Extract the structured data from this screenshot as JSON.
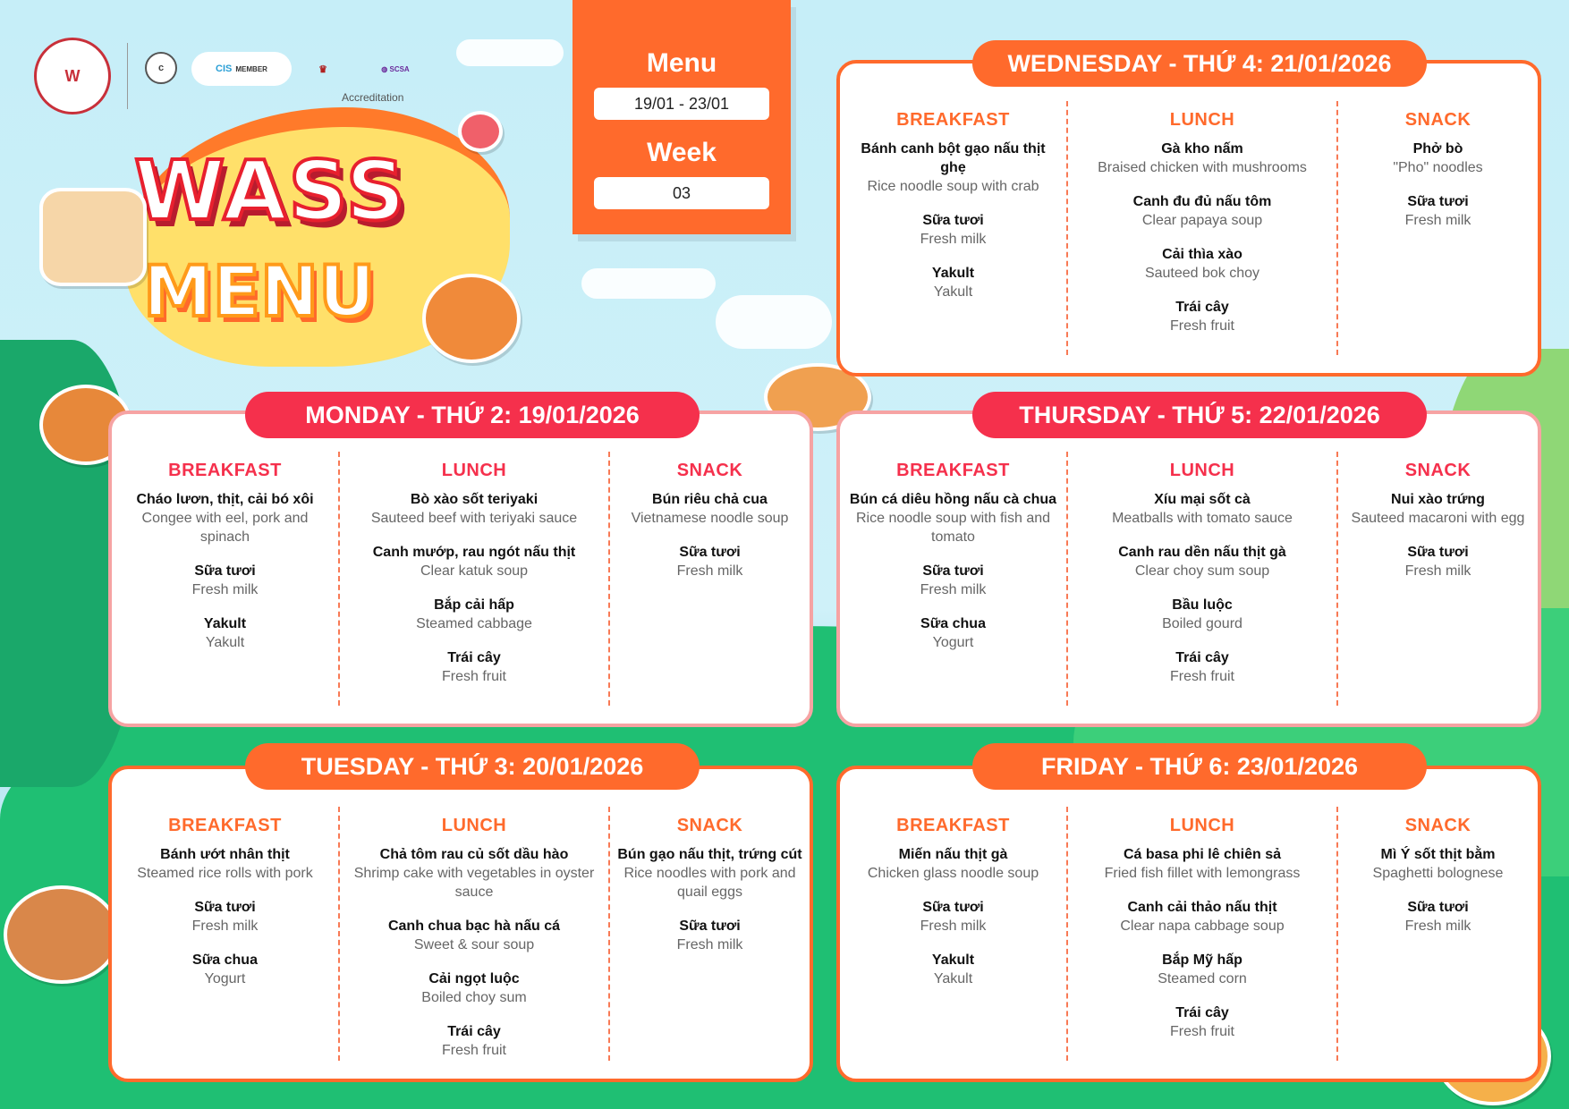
{
  "colors": {
    "orange": "#ff6a2c",
    "red": "#f5304c",
    "pink_border": "#f6a3a3"
  },
  "brand": {
    "logo_text": "WASS",
    "accreditation": "Accreditation",
    "logos": [
      "cognia",
      "CIS MEMBER",
      "WA",
      "School Curriculum and Standards Authority International"
    ]
  },
  "title": {
    "line1": "WASS",
    "line2": "MENU"
  },
  "menu_panel": {
    "menu_label": "Menu",
    "date_range": "19/01 - 23/01",
    "week_label": "Week",
    "week_number": "03"
  },
  "days": [
    {
      "header": "MONDAY - THỨ 2: 19/01/2026",
      "style": "red",
      "meals": [
        {
          "label": "BREAKFAST",
          "items": [
            {
              "vi": "Cháo lươn, thịt, cải bó xôi",
              "en": "Congee with eel, pork and spinach"
            },
            {
              "vi": "Sữa tươi",
              "en": "Fresh milk"
            },
            {
              "vi": "Yakult",
              "en": "Yakult"
            }
          ]
        },
        {
          "label": "LUNCH",
          "items": [
            {
              "vi": "Bò xào sốt teriyaki",
              "en": "Sauteed beef with teriyaki sauce"
            },
            {
              "vi": "Canh mướp, rau ngót nấu thịt",
              "en": "Clear katuk soup"
            },
            {
              "vi": "Bắp cải hấp",
              "en": "Steamed cabbage"
            },
            {
              "vi": "Trái cây",
              "en": "Fresh fruit"
            }
          ]
        },
        {
          "label": "SNACK",
          "items": [
            {
              "vi": "Bún riêu chả cua",
              "en": "Vietnamese noodle soup"
            },
            {
              "vi": "Sữa tươi",
              "en": "Fresh milk"
            }
          ]
        }
      ]
    },
    {
      "header": "TUESDAY - THỨ 3: 20/01/2026",
      "style": "orange",
      "meals": [
        {
          "label": "BREAKFAST",
          "items": [
            {
              "vi": "Bánh ướt nhân thịt",
              "en": "Steamed rice rolls with pork"
            },
            {
              "vi": "Sữa tươi",
              "en": "Fresh milk"
            },
            {
              "vi": "Sữa chua",
              "en": "Yogurt"
            }
          ]
        },
        {
          "label": "LUNCH",
          "items": [
            {
              "vi": "Chả tôm rau củ sốt dầu hào",
              "en": "Shrimp cake with vegetables in oyster sauce"
            },
            {
              "vi": "Canh chua bạc hà nấu cá",
              "en": "Sweet & sour soup"
            },
            {
              "vi": "Cải ngọt luộc",
              "en": "Boiled choy sum"
            },
            {
              "vi": "Trái cây",
              "en": "Fresh fruit"
            }
          ]
        },
        {
          "label": "SNACK",
          "items": [
            {
              "vi": "Bún gạo nấu thịt, trứng cút",
              "en": "Rice noodles with pork and quail eggs"
            },
            {
              "vi": "Sữa tươi",
              "en": "Fresh milk"
            }
          ]
        }
      ]
    },
    {
      "header": "WEDNESDAY - THỨ 4: 21/01/2026",
      "style": "orange",
      "meals": [
        {
          "label": "BREAKFAST",
          "items": [
            {
              "vi": "Bánh canh bột gạo nấu thịt ghẹ",
              "en": "Rice noodle soup with crab"
            },
            {
              "vi": "Sữa tươi",
              "en": "Fresh milk"
            },
            {
              "vi": "Yakult",
              "en": "Yakult"
            }
          ]
        },
        {
          "label": "LUNCH",
          "items": [
            {
              "vi": "Gà kho nấm",
              "en": "Braised chicken with mushrooms"
            },
            {
              "vi": "Canh đu đủ nấu tôm",
              "en": "Clear papaya soup"
            },
            {
              "vi": "Cải thìa xào",
              "en": "Sauteed bok choy"
            },
            {
              "vi": "Trái cây",
              "en": "Fresh fruit"
            }
          ]
        },
        {
          "label": "SNACK",
          "items": [
            {
              "vi": "Phở bò",
              "en": "\"Pho\" noodles"
            },
            {
              "vi": "Sữa tươi",
              "en": "Fresh milk"
            }
          ]
        }
      ]
    },
    {
      "header": "THURSDAY - THỨ 5: 22/01/2026",
      "style": "red",
      "meals": [
        {
          "label": "BREAKFAST",
          "items": [
            {
              "vi": "Bún cá diêu hồng nấu cà chua",
              "en": "Rice noodle soup with fish and tomato"
            },
            {
              "vi": "Sữa tươi",
              "en": "Fresh milk"
            },
            {
              "vi": "Sữa chua",
              "en": "Yogurt"
            }
          ]
        },
        {
          "label": "LUNCH",
          "items": [
            {
              "vi": "Xíu mại sốt cà",
              "en": "Meatballs with tomato sauce"
            },
            {
              "vi": "Canh rau dền nấu thịt gà",
              "en": "Clear choy sum soup"
            },
            {
              "vi": "Bầu luộc",
              "en": "Boiled gourd"
            },
            {
              "vi": "Trái cây",
              "en": "Fresh fruit"
            }
          ]
        },
        {
          "label": "SNACK",
          "items": [
            {
              "vi": "Nui xào trứng",
              "en": "Sauteed macaroni with egg"
            },
            {
              "vi": "Sữa tươi",
              "en": "Fresh milk"
            }
          ]
        }
      ]
    },
    {
      "header": "FRIDAY - THỨ 6: 23/01/2026",
      "style": "orange",
      "meals": [
        {
          "label": "BREAKFAST",
          "items": [
            {
              "vi": "Miến nấu thịt gà",
              "en": "Chicken glass noodle soup"
            },
            {
              "vi": "Sữa tươi",
              "en": "Fresh milk"
            },
            {
              "vi": "Yakult",
              "en": "Yakult"
            }
          ]
        },
        {
          "label": "LUNCH",
          "items": [
            {
              "vi": "Cá basa phi lê chiên sả",
              "en": "Fried fish fillet with lemongrass"
            },
            {
              "vi": "Canh cải thảo nấu thịt",
              "en": "Clear napa cabbage soup"
            },
            {
              "vi": "Bắp Mỹ hấp",
              "en": "Steamed corn"
            },
            {
              "vi": "Trái cây",
              "en": "Fresh fruit"
            }
          ]
        },
        {
          "label": "SNACK",
          "items": [
            {
              "vi": "Mì Ý sốt thịt bằm",
              "en": "Spaghetti bolognese"
            },
            {
              "vi": "Sữa tươi",
              "en": "Fresh milk"
            }
          ]
        }
      ]
    }
  ]
}
